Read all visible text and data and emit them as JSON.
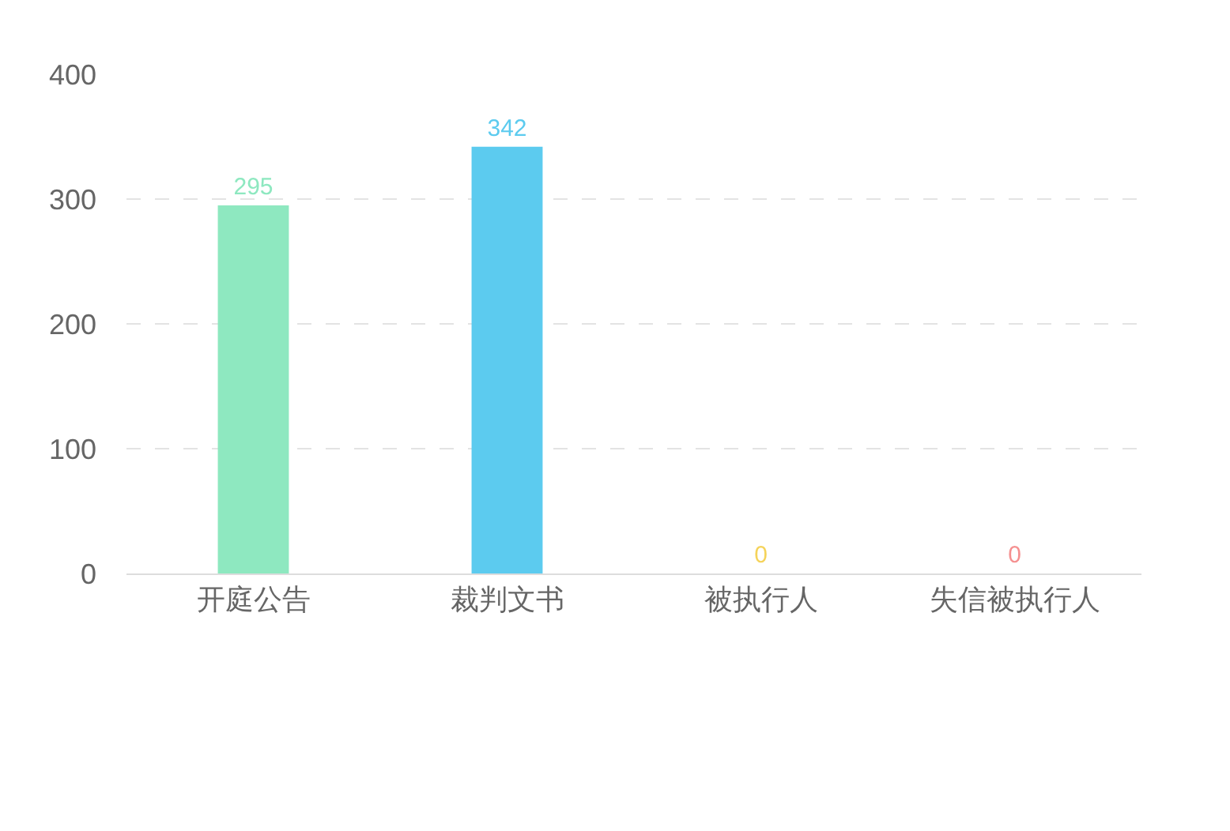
{
  "chart_data": {
    "type": "bar",
    "categories": [
      "开庭公告",
      "裁判文书",
      "被执行人",
      "失信被执行人"
    ],
    "values": [
      295,
      342,
      0,
      0
    ],
    "colors": [
      "#8ee8c0",
      "#5ccbef",
      "#f5d35a",
      "#f59090"
    ],
    "ylim": [
      0,
      400
    ],
    "yticks": [
      0,
      100,
      200,
      300,
      400
    ],
    "grid": "y",
    "data_labels": true
  }
}
